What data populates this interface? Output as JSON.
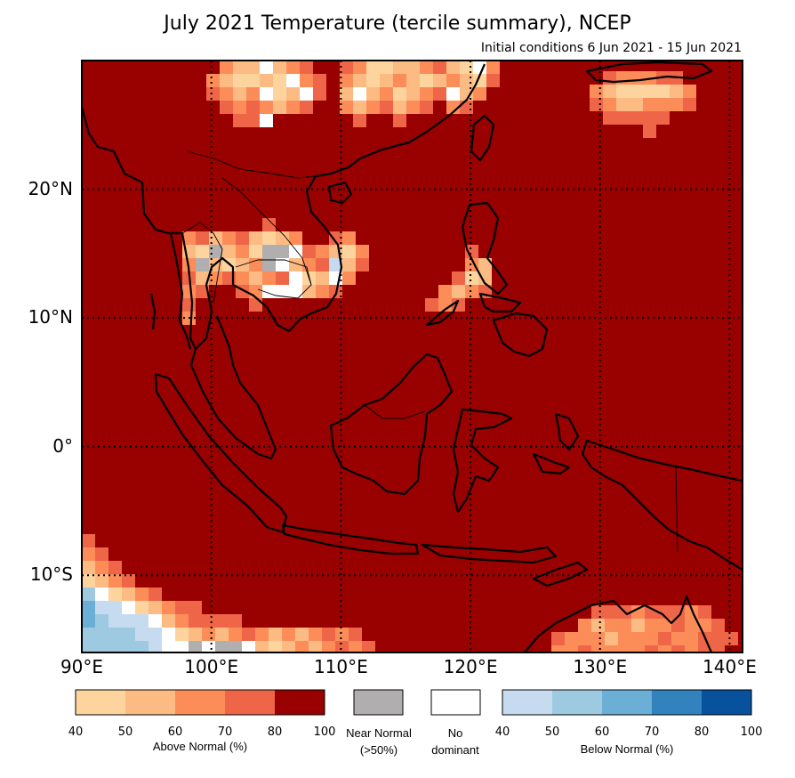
{
  "title": "July 2021 Temperature (tercile summary), NCEP",
  "subtitle": "Initial conditions 6 Jun 2021 - 15 Jun 2021",
  "map": {
    "lon_range": [
      90,
      141
    ],
    "lat_range": [
      -16,
      30
    ],
    "lat_labels": [
      {
        "lat": 20,
        "text": "20°N"
      },
      {
        "lat": 10,
        "text": "10°N"
      },
      {
        "lat": 0,
        "text": "0°"
      },
      {
        "lat": -10,
        "text": "10°S"
      }
    ],
    "lon_labels": [
      {
        "lon": 90,
        "text": "90°E"
      },
      {
        "lon": 100,
        "text": "100°E"
      },
      {
        "lon": 110,
        "text": "110°E"
      },
      {
        "lon": 120,
        "text": "120°E"
      },
      {
        "lon": 130,
        "text": "130°E"
      },
      {
        "lon": 140,
        "text": "140°E"
      }
    ],
    "background_color": "#990000",
    "coastline_color": "#000000"
  },
  "legend": {
    "above": {
      "colors": [
        "#fdd49e",
        "#fdbb84",
        "#fc8d59",
        "#ef6548",
        "#990000"
      ],
      "ticks": [
        "40",
        "50",
        "60",
        "70",
        "80",
        "100"
      ],
      "caption": "Above Normal (%)"
    },
    "near": {
      "color": "#b0aeae",
      "caption_line1": "Near Normal",
      "caption_line2": "(>50%)"
    },
    "none": {
      "color": "#ffffff",
      "caption_line1": "No",
      "caption_line2": "dominant"
    },
    "below": {
      "colors": [
        "#c6dbef",
        "#9ecae1",
        "#6baed6",
        "#3182bd",
        "#08519c"
      ],
      "ticks": [
        "40",
        "50",
        "60",
        "70",
        "80",
        "100"
      ],
      "caption": "Below Normal (%)"
    }
  }
}
